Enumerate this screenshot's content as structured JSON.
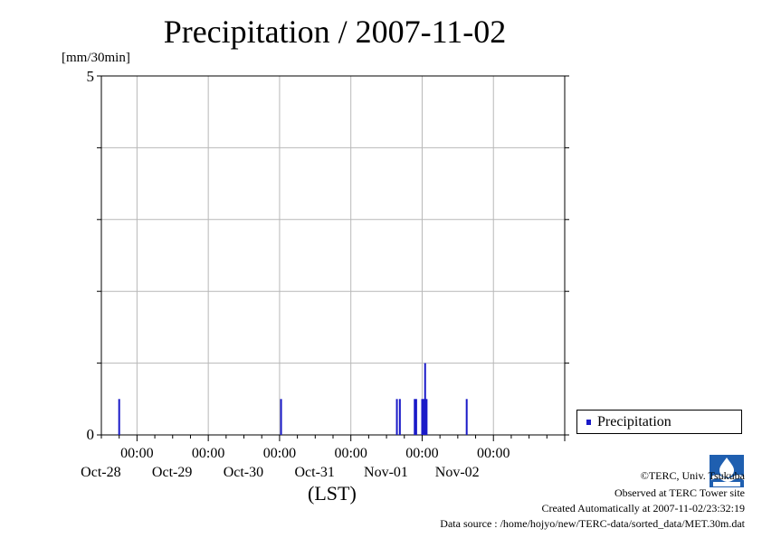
{
  "chart_data": {
    "type": "bar",
    "title": "Precipitation / 2007-11-02",
    "ylabel": "[mm/30min]",
    "xlabel": "(LST)",
    "ylim": [
      0,
      5
    ],
    "y_tick_labels": [
      "0",
      "5"
    ],
    "x_range": [
      "2007-10-27 12:00",
      "2007-11-03 00:00"
    ],
    "x_tick_labels": [
      {
        "time": "00:00",
        "date": "Oct-28"
      },
      {
        "time": "00:00",
        "date": "Oct-29"
      },
      {
        "time": "00:00",
        "date": "Oct-30"
      },
      {
        "time": "00:00",
        "date": "Oct-31"
      },
      {
        "time": "00:00",
        "date": "Nov-01"
      },
      {
        "time": "00:00",
        "date": "Nov-02"
      }
    ],
    "grid": true,
    "legend_position": "right",
    "series": [
      {
        "name": "Precipitation",
        "color": "#1a1ac8",
        "points": [
          {
            "t": "2007-10-27 18:00",
            "v": 0.5
          },
          {
            "t": "2007-10-30 00:30",
            "v": 0.5
          },
          {
            "t": "2007-10-31 15:30",
            "v": 0.5
          },
          {
            "t": "2007-10-31 16:30",
            "v": 0.5
          },
          {
            "t": "2007-10-31 21:30",
            "v": 0.5
          },
          {
            "t": "2007-10-31 22:00",
            "v": 0.5
          },
          {
            "t": "2007-11-01 00:00",
            "v": 0.5
          },
          {
            "t": "2007-11-01 00:30",
            "v": 0.5
          },
          {
            "t": "2007-11-01 01:00",
            "v": 1.0
          },
          {
            "t": "2007-11-01 01:30",
            "v": 0.5
          },
          {
            "t": "2007-11-01 15:00",
            "v": 0.5
          }
        ]
      }
    ]
  },
  "credits": {
    "copyright": "©TERC, Univ. Tsukuba",
    "observed": "Observed at TERC Tower site",
    "created": "Created Automatically at 2007-11-02/23:32:19",
    "source": "Data source : /home/hojyo/new/TERC-data/sorted_data/MET.30m.dat",
    "logo_text": "TERC"
  }
}
